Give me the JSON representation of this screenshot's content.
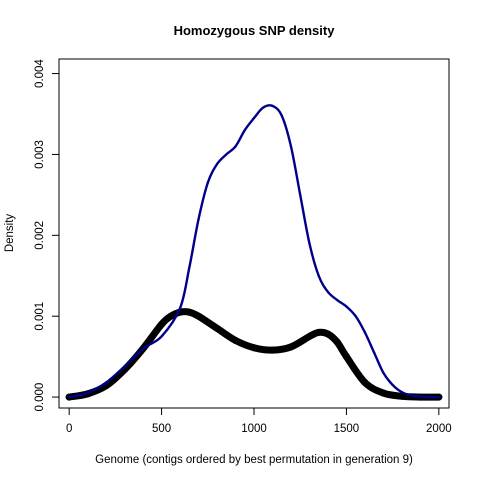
{
  "chart_data": {
    "type": "line",
    "title": "Homozygous SNP density",
    "xlabel": "Genome (contigs ordered by best permutation in generation 9)",
    "ylabel": "Density",
    "xlim": [
      -55,
      2055
    ],
    "ylim": [
      -0.000135,
      0.00418
    ],
    "x_ticks": [
      0,
      500,
      1000,
      1500,
      2000
    ],
    "x_tick_labels": [
      "0",
      "500",
      "1000",
      "1500",
      "2000"
    ],
    "y_ticks": [
      0,
      0.001,
      0.002,
      0.003,
      0.004
    ],
    "y_tick_labels": [
      "0.000",
      "0.001",
      "0.002",
      "0.003",
      "0.004"
    ],
    "grid": false,
    "legend": "none",
    "series": [
      {
        "color": "#00008b",
        "style": "thin-line",
        "x": [
          0,
          100,
          200,
          300,
          400,
          500,
          600,
          650,
          700,
          750,
          800,
          850,
          900,
          950,
          1000,
          1050,
          1100,
          1150,
          1200,
          1250,
          1300,
          1350,
          1400,
          1450,
          1500,
          1550,
          1600,
          1650,
          1700,
          1750,
          1800,
          1850,
          1900,
          1950,
          2000
        ],
        "y": [
          0.0,
          5e-05,
          0.00018,
          0.00038,
          0.0006,
          0.00075,
          0.0011,
          0.0016,
          0.0022,
          0.00265,
          0.00288,
          0.003,
          0.0031,
          0.0033,
          0.00345,
          0.00358,
          0.0036,
          0.00348,
          0.0031,
          0.0025,
          0.0019,
          0.0015,
          0.0013,
          0.0012,
          0.00112,
          0.001,
          0.0008,
          0.00055,
          0.0003,
          0.00015,
          6e-05,
          2e-05,
          1e-05,
          0.0,
          0.0
        ]
      },
      {
        "color": "#000000",
        "style": "thick-points",
        "x": [
          0,
          100,
          200,
          300,
          400,
          500,
          550,
          600,
          650,
          700,
          800,
          900,
          1000,
          1100,
          1200,
          1300,
          1350,
          1400,
          1450,
          1500,
          1600,
          1700,
          1800,
          1900,
          2000
        ],
        "y": [
          0.0,
          4e-05,
          0.00014,
          0.00034,
          0.0006,
          0.0009,
          0.001,
          0.00105,
          0.00105,
          0.001,
          0.00085,
          0.0007,
          0.00061,
          0.00058,
          0.00062,
          0.00075,
          0.0008,
          0.00078,
          0.00068,
          0.0005,
          0.00018,
          5e-05,
          1e-05,
          0.0,
          0.0
        ]
      }
    ]
  }
}
